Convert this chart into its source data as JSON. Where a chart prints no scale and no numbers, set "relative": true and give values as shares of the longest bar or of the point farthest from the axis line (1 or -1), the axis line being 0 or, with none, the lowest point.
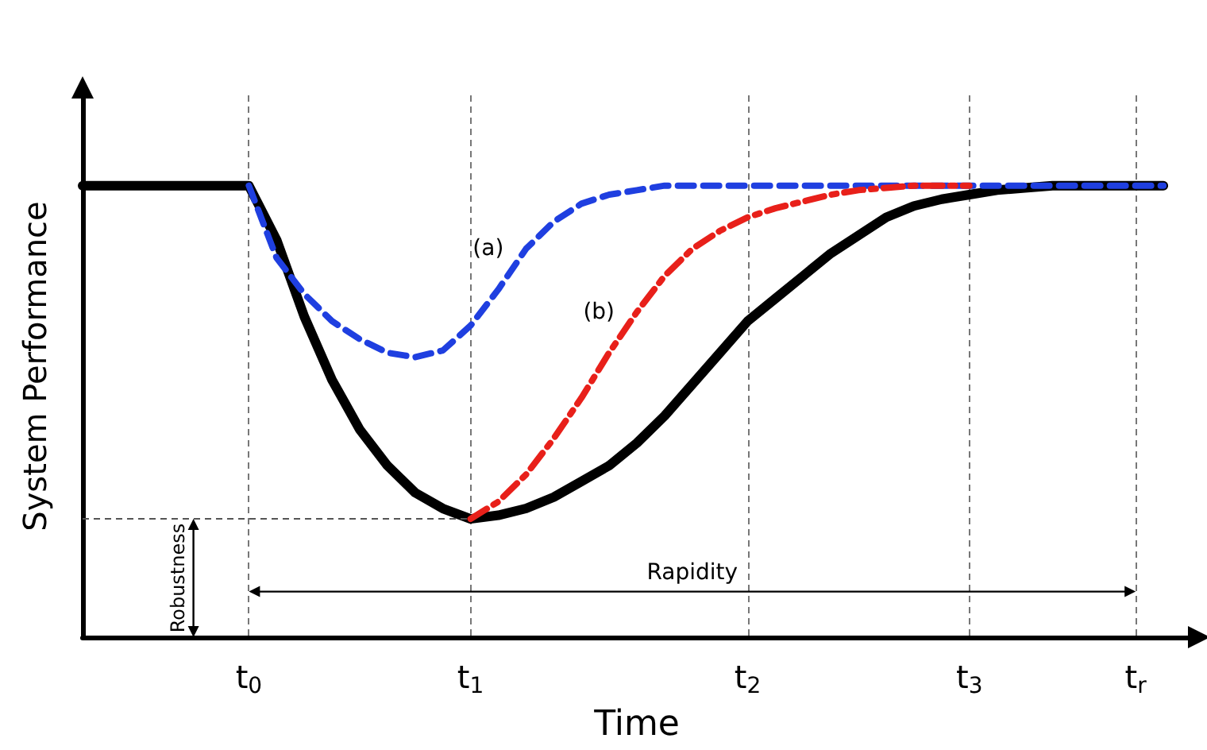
{
  "chart_data": {
    "type": "line",
    "relative": true,
    "xlabel": "Time",
    "ylabel": "System Performance",
    "categories": [
      null,
      null,
      null,
      null,
      null,
      null,
      "t$_{0}$",
      null,
      null,
      null,
      null,
      null,
      null,
      null,
      "t$_{1}$",
      null,
      null,
      null,
      null,
      null,
      null,
      null,
      null,
      null,
      "t$_{2}$",
      null,
      null,
      null,
      null,
      null,
      null,
      null,
      "t$_{3}$",
      null,
      null,
      null,
      null,
      null,
      "t$_{r}$",
      null,
      null
    ],
    "grid": "x",
    "marker": "none",
    "tick_labels": "x",
    "series": [
      {
        "color": "#000000",
        "line_style": "solid",
        "values": [
          1,
          1,
          1,
          1,
          1,
          1,
          1,
          0.88,
          0.71,
          0.57,
          0.46,
          0.38,
          0.32,
          0.285,
          0.262,
          0.27,
          0.285,
          0.31,
          0.345,
          0.38,
          0.43,
          0.49,
          0.56,
          0.63,
          0.7,
          0.75,
          0.8,
          0.85,
          0.89,
          0.93,
          0.955,
          0.97,
          0.98,
          0.99,
          0.995,
          1,
          1,
          1,
          1,
          1,
          null
        ]
      },
      {
        "name": "(a)",
        "color": "#1f3fe0",
        "line_style": "dashed",
        "values": [
          null,
          null,
          null,
          null,
          null,
          null,
          1,
          0.84,
          0.76,
          0.7,
          0.66,
          0.63,
          0.62,
          0.635,
          0.69,
          0.77,
          0.86,
          0.92,
          0.96,
          0.98,
          0.99,
          1,
          1,
          1,
          1,
          1,
          1,
          1,
          1,
          1,
          1,
          1,
          1,
          1,
          1,
          1,
          1,
          1,
          1,
          1,
          null
        ]
      },
      {
        "name": "(b)",
        "color": "#e8201a",
        "line_style": "dashdot",
        "values": [
          null,
          null,
          null,
          null,
          null,
          null,
          null,
          null,
          null,
          null,
          null,
          null,
          null,
          null,
          0.262,
          0.3,
          0.36,
          0.44,
          0.53,
          0.63,
          0.72,
          0.8,
          0.86,
          0.9,
          0.93,
          0.95,
          0.965,
          0.98,
          0.99,
          0.995,
          1,
          1,
          1,
          null,
          null,
          null,
          null,
          null,
          null,
          null,
          null
        ]
      }
    ],
    "ref_lines": [
      {
        "axis": "y",
        "value": 0.262
      }
    ],
    "annotations": [
      "Robustness",
      "Rapidity"
    ]
  }
}
